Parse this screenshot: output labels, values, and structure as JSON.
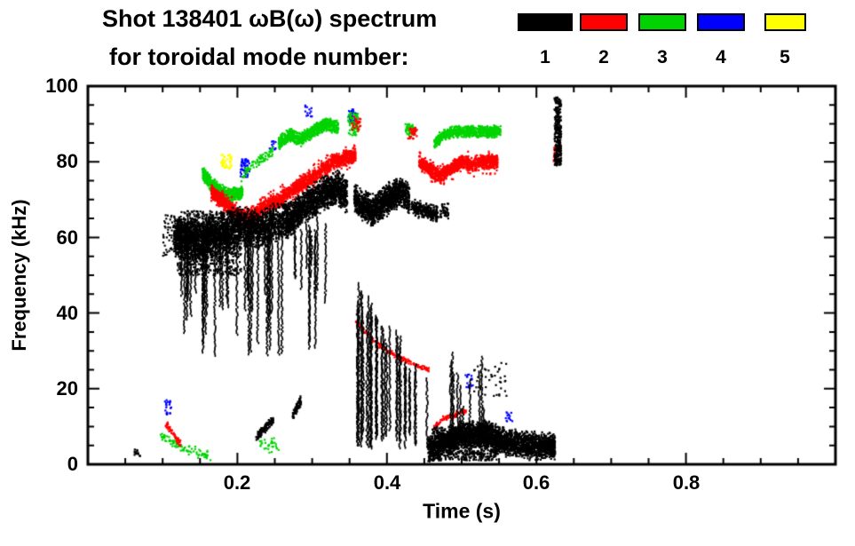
{
  "header": {
    "title_line1": "Shot 138401 ωB(ω) spectrum",
    "title_line2": "for toroidal mode number:"
  },
  "chart_data": {
    "type": "scatter",
    "title": "Shot 138401 ωB(ω) spectrum",
    "subtitle": "for toroidal mode number:",
    "xlabel": "Time (s)",
    "ylabel": "Frequency (kHz)",
    "xlim": [
      0,
      1
    ],
    "ylim": [
      0,
      100
    ],
    "xticks": [
      0.2,
      0.4,
      0.6,
      0.8
    ],
    "xtick_labels": [
      "0.2",
      "0.4",
      "0.6",
      "0.8"
    ],
    "yticks": [
      0,
      20,
      40,
      60,
      80,
      100
    ],
    "ytick_labels": [
      "0",
      "20",
      "40",
      "60",
      "80",
      "100"
    ],
    "x_minor_step": 0.05,
    "y_minor_step": 5,
    "grid": false,
    "axis_color": "#000000",
    "background": "#ffffff",
    "legend": {
      "position": "top-right",
      "entries": [
        {
          "label": "1",
          "color": "#000000"
        },
        {
          "label": "2",
          "color": "#ff0000"
        },
        {
          "label": "3",
          "color": "#00d400"
        },
        {
          "label": "4",
          "color": "#0000ff"
        },
        {
          "label": "5",
          "color": "#ffff00"
        }
      ]
    },
    "series": [
      {
        "name": "toroidal mode n=1",
        "color": "#000000",
        "clusters": [
          {
            "kind": "band",
            "path": [
              [
                0.115,
                60
              ],
              [
                0.15,
                59
              ],
              [
                0.175,
                61
              ],
              [
                0.205,
                63
              ]
            ],
            "hw": 6,
            "n": 1600
          },
          {
            "kind": "box",
            "t": [
              0.12,
              0.205
            ],
            "f": [
              50,
              67
            ],
            "n": 700
          },
          {
            "kind": "band",
            "path": [
              [
                0.205,
                63
              ],
              [
                0.23,
                62
              ],
              [
                0.25,
                64
              ],
              [
                0.268,
                65
              ]
            ],
            "hw": 5.5,
            "n": 900
          },
          {
            "kind": "vstreaks",
            "t": [
              0.125,
              0.26
            ],
            "top": [
              58,
              67
            ],
            "bot": [
              28,
              46
            ],
            "k": 34
          },
          {
            "kind": "band",
            "path": [
              [
                0.265,
                64
              ],
              [
                0.29,
                68
              ],
              [
                0.31,
                71
              ],
              [
                0.335,
                73
              ],
              [
                0.347,
                71
              ]
            ],
            "hw": 5,
            "n": 1500
          },
          {
            "kind": "vstreaks",
            "t": [
              0.27,
              0.325
            ],
            "top": [
              60,
              66
            ],
            "bot": [
              40,
              54
            ],
            "k": 9
          },
          {
            "kind": "vstreaks",
            "t": [
              0.295,
              0.315
            ],
            "top": [
              60,
              64
            ],
            "bot": [
              28,
              36
            ],
            "k": 3
          },
          {
            "kind": "band",
            "path": [
              [
                0.356,
                70
              ],
              [
                0.38,
                67
              ],
              [
                0.4,
                70
              ],
              [
                0.418,
                72
              ],
              [
                0.43,
                70
              ]
            ],
            "hw": 4.5,
            "n": 1300
          },
          {
            "kind": "band",
            "path": [
              [
                0.432,
                68
              ],
              [
                0.45,
                67
              ],
              [
                0.468,
                66
              ]
            ],
            "hw": 2.5,
            "n": 260
          },
          {
            "kind": "box",
            "t": [
              0.47,
              0.483
            ],
            "f": [
              65,
              69
            ],
            "n": 40
          },
          {
            "kind": "vstreaks",
            "t": [
              0.358,
              0.45
            ],
            "top": [
              46,
              22
            ],
            "bot": [
              4,
              9
            ],
            "k": 30,
            "taper": true
          },
          {
            "kind": "vstreaks",
            "t": [
              0.452,
              0.53
            ],
            "top": [
              14,
              30
            ],
            "bot": [
              3,
              8
            ],
            "k": 11
          },
          {
            "kind": "band",
            "path": [
              [
                0.455,
                4
              ],
              [
                0.48,
                6
              ],
              [
                0.5,
                8
              ],
              [
                0.53,
                8
              ],
              [
                0.555,
                6
              ],
              [
                0.59,
                5
              ],
              [
                0.625,
                5
              ]
            ],
            "hw": 4,
            "n": 2600
          },
          {
            "kind": "box",
            "t": [
              0.46,
              0.55
            ],
            "f": [
              1,
              10
            ],
            "n": 700
          },
          {
            "kind": "box",
            "t": [
              0.624,
              0.633
            ],
            "f": [
              79,
              97
            ],
            "n": 300
          },
          {
            "kind": "band",
            "path": [
              [
                0.225,
                7
              ],
              [
                0.248,
                12
              ]
            ],
            "hw": 1.3,
            "n": 110
          },
          {
            "kind": "band",
            "path": [
              [
                0.274,
                13
              ],
              [
                0.285,
                17
              ]
            ],
            "hw": 1.5,
            "n": 80
          },
          {
            "kind": "box",
            "t": [
              0.062,
              0.07
            ],
            "f": [
              2,
              4
            ],
            "n": 14
          },
          {
            "kind": "box",
            "t": [
              0.1,
              0.116
            ],
            "f": [
              55,
              66
            ],
            "n": 45
          },
          {
            "kind": "box",
            "t": [
              0.515,
              0.56
            ],
            "f": [
              18,
              27
            ],
            "n": 45
          }
        ]
      },
      {
        "name": "toroidal mode n=2",
        "color": "#ff0000",
        "clusters": [
          {
            "kind": "band",
            "path": [
              [
                0.165,
                72
              ],
              [
                0.185,
                69
              ],
              [
                0.2,
                66
              ],
              [
                0.215,
                65
              ],
              [
                0.235,
                68
              ],
              [
                0.255,
                70
              ],
              [
                0.27,
                72
              ],
              [
                0.285,
                74
              ],
              [
                0.3,
                76
              ],
              [
                0.315,
                78
              ],
              [
                0.33,
                80
              ],
              [
                0.345,
                81
              ],
              [
                0.358,
                82
              ]
            ],
            "hw": 2.2,
            "n": 1700
          },
          {
            "kind": "band",
            "path": [
              [
                0.165,
                72
              ],
              [
                0.185,
                69
              ],
              [
                0.2,
                66
              ],
              [
                0.215,
                65
              ],
              [
                0.235,
                68
              ],
              [
                0.255,
                70
              ],
              [
                0.27,
                72
              ],
              [
                0.285,
                74
              ],
              [
                0.3,
                76
              ],
              [
                0.315,
                78
              ],
              [
                0.33,
                80
              ],
              [
                0.345,
                81
              ],
              [
                0.358,
                82
              ]
            ],
            "hw": 4,
            "n": 350
          },
          {
            "kind": "band",
            "path": [
              [
                0.443,
                80
              ],
              [
                0.458,
                78
              ],
              [
                0.47,
                76
              ],
              [
                0.485,
                78
              ],
              [
                0.5,
                80
              ],
              [
                0.515,
                79
              ],
              [
                0.53,
                80
              ],
              [
                0.548,
                80
              ]
            ],
            "hw": 2,
            "n": 950
          },
          {
            "kind": "band",
            "path": [
              [
                0.443,
                80
              ],
              [
                0.458,
                78
              ],
              [
                0.47,
                76
              ],
              [
                0.485,
                78
              ],
              [
                0.5,
                80
              ],
              [
                0.515,
                79
              ],
              [
                0.53,
                80
              ],
              [
                0.548,
                80
              ]
            ],
            "hw": 3.5,
            "n": 220
          },
          {
            "kind": "band",
            "path": [
              [
                0.358,
                38
              ],
              [
                0.38,
                33
              ],
              [
                0.4,
                30
              ],
              [
                0.42,
                28
              ],
              [
                0.44,
                26
              ],
              [
                0.456,
                25
              ]
            ],
            "hw": 0.8,
            "n": 150
          },
          {
            "kind": "band",
            "path": [
              [
                0.463,
                10
              ],
              [
                0.475,
                12
              ],
              [
                0.49,
                13
              ],
              [
                0.506,
                14
              ]
            ],
            "hw": 0.9,
            "n": 85
          },
          {
            "kind": "band",
            "path": [
              [
                0.104,
                11
              ],
              [
                0.125,
                5
              ]
            ],
            "hw": 1.1,
            "n": 55
          },
          {
            "kind": "box",
            "t": [
              0.623,
              0.632
            ],
            "f": [
              80,
              84
            ],
            "n": 45
          },
          {
            "kind": "box",
            "t": [
              0.428,
              0.44
            ],
            "f": [
              86,
              89
            ],
            "n": 35
          },
          {
            "kind": "box",
            "t": [
              0.353,
              0.365
            ],
            "f": [
              88,
              92
            ],
            "n": 28
          }
        ]
      },
      {
        "name": "toroidal mode n=3",
        "color": "#00d400",
        "clusters": [
          {
            "kind": "band",
            "path": [
              [
                0.153,
                77
              ],
              [
                0.165,
                74
              ],
              [
                0.178,
                72
              ],
              [
                0.192,
                71
              ],
              [
                0.207,
                72
              ]
            ],
            "hw": 2.2,
            "n": 550
          },
          {
            "kind": "band",
            "path": [
              [
                0.205,
                76
              ],
              [
                0.225,
                80
              ],
              [
                0.248,
                83
              ]
            ],
            "hw": 1.6,
            "n": 80
          },
          {
            "kind": "band",
            "path": [
              [
                0.255,
                85
              ],
              [
                0.27,
                87
              ],
              [
                0.285,
                86
              ],
              [
                0.3,
                88
              ],
              [
                0.318,
                90
              ],
              [
                0.335,
                89
              ]
            ],
            "hw": 2,
            "n": 800
          },
          {
            "kind": "box",
            "t": [
              0.348,
              0.362
            ],
            "f": [
              87,
              93
            ],
            "n": 70
          },
          {
            "kind": "box",
            "t": [
              0.424,
              0.437
            ],
            "f": [
              87,
              90
            ],
            "n": 55
          },
          {
            "kind": "band",
            "path": [
              [
                0.463,
                85
              ],
              [
                0.475,
                87
              ],
              [
                0.49,
                88
              ],
              [
                0.51,
                88
              ],
              [
                0.53,
                88
              ],
              [
                0.552,
                88
              ]
            ],
            "hw": 1.8,
            "n": 750
          },
          {
            "kind": "band",
            "path": [
              [
                0.095,
                8
              ],
              [
                0.12,
                5
              ],
              [
                0.148,
                3
              ],
              [
                0.165,
                2
              ]
            ],
            "hw": 1.5,
            "n": 85
          },
          {
            "kind": "box",
            "t": [
              0.23,
              0.255
            ],
            "f": [
              3,
              7
            ],
            "n": 30
          }
        ]
      },
      {
        "name": "toroidal mode n=4",
        "color": "#0000ff",
        "clusters": [
          {
            "kind": "box",
            "t": [
              0.204,
              0.216
            ],
            "f": [
              76,
              81
            ],
            "n": 55
          },
          {
            "kind": "box",
            "t": [
              0.348,
              0.358
            ],
            "f": [
              90,
              94
            ],
            "n": 40
          },
          {
            "kind": "box",
            "t": [
              0.103,
              0.112
            ],
            "f": [
              13,
              17
            ],
            "n": 22
          },
          {
            "kind": "box",
            "t": [
              0.505,
              0.515
            ],
            "f": [
              20,
              24
            ],
            "n": 18
          },
          {
            "kind": "box",
            "t": [
              0.558,
              0.568
            ],
            "f": [
              11,
              14
            ],
            "n": 14
          },
          {
            "kind": "box",
            "t": [
              0.29,
              0.3
            ],
            "f": [
              92,
              95
            ],
            "n": 14
          },
          {
            "kind": "box",
            "t": [
              0.243,
              0.251
            ],
            "f": [
              83,
              86
            ],
            "n": 12
          }
        ]
      },
      {
        "name": "toroidal mode n=5",
        "color": "#ffff00",
        "clusters": [
          {
            "kind": "box",
            "t": [
              0.178,
              0.192
            ],
            "f": [
              78,
              82
            ],
            "n": 40
          }
        ]
      }
    ]
  }
}
